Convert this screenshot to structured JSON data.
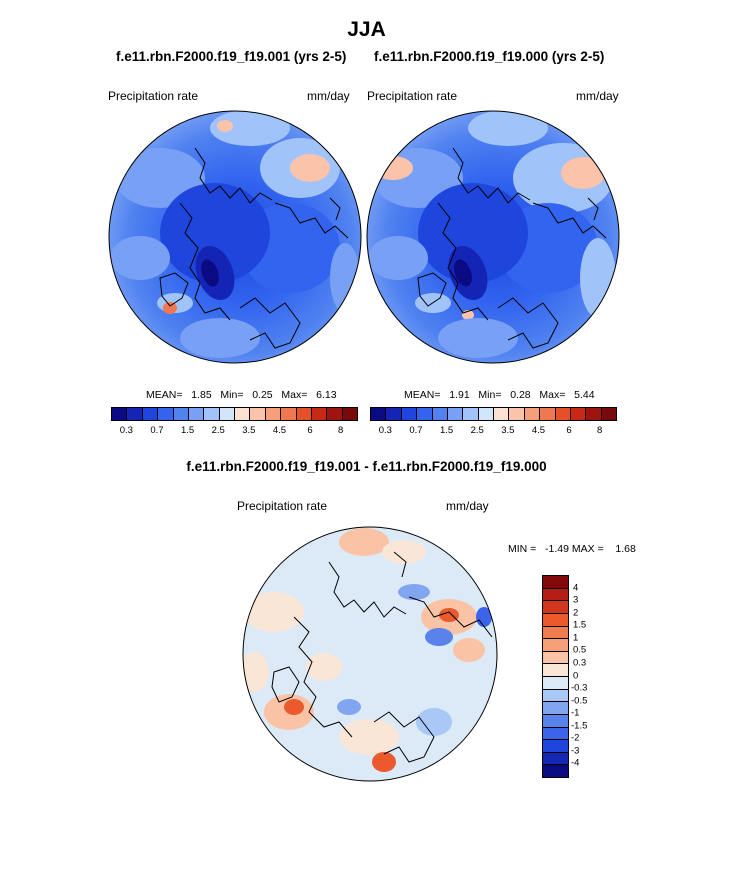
{
  "figure": {
    "title": "JJA",
    "panel_left_title": "f.e11.rbn.F2000.f19_f19.001 (yrs 2-5)",
    "panel_right_title": "f.e11.rbn.F2000.f19_f19.000 (yrs 2-5)",
    "diff_title": "f.e11.rbn.F2000.f19_f19.001 - f.e11.rbn.F2000.f19_f19.000"
  },
  "panels": [
    {
      "id": "case_001",
      "variable_label": "Precipitation rate",
      "units_label": "mm/day",
      "stats_text": "MEAN=   1.85   Min=   0.25   Max=   6.13",
      "mean": 1.85,
      "min": 0.25,
      "max": 6.13
    },
    {
      "id": "case_000",
      "variable_label": "Precipitation rate",
      "units_label": "mm/day",
      "stats_text": "MEAN=   1.91   Min=   0.28   Max=   5.44",
      "mean": 1.91,
      "min": 0.28,
      "max": 5.44
    },
    {
      "id": "difference",
      "variable_label": "Precipitation rate",
      "units_label": "mm/day",
      "stats_text": "MIN =   -1.49 MAX =    1.68",
      "min": -1.49,
      "max": 1.68
    }
  ],
  "colorbar_abs": {
    "colors": [
      "#0a0a82",
      "#1424b4",
      "#1e46dc",
      "#3264f0",
      "#5082f0",
      "#78a0f5",
      "#a0c3fa",
      "#d2e6fa",
      "#fae1d2",
      "#fac3aa",
      "#f5a078",
      "#f07850",
      "#e65028",
      "#c82814",
      "#a01410",
      "#780a0a"
    ],
    "tick_labels": [
      "0.3",
      "0.7",
      "1.5",
      "2.5",
      "3.5",
      "4.5",
      "6",
      "8"
    ]
  },
  "colorbar_diff": {
    "colors": [
      "#0a0a82",
      "#1428b4",
      "#1e46dc",
      "#3c64eb",
      "#5a82eb",
      "#82a5f0",
      "#aac8f5",
      "#dceaf8",
      "#fae6d7",
      "#fac3a5",
      "#f5a078",
      "#f07d50",
      "#eb5a2d",
      "#d2371e",
      "#b41e14",
      "#820a0a"
    ],
    "tick_labels": [
      "4",
      "3",
      "2",
      "1.5",
      "1",
      "0.5",
      "0.3",
      "0",
      "-0.3",
      "-0.5",
      "-1",
      "-1.5",
      "-2",
      "-3",
      "-4"
    ]
  },
  "map_projection": "north-polar-stereographic"
}
